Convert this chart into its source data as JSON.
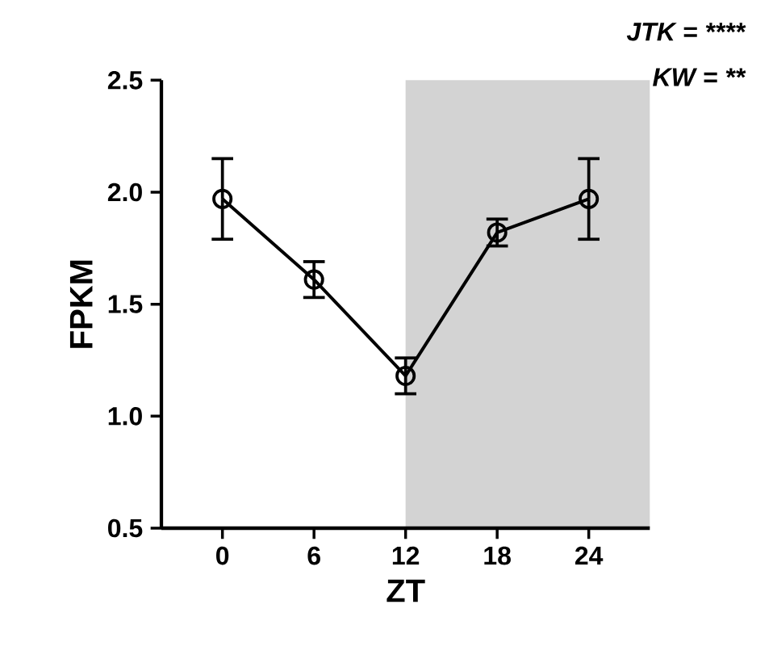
{
  "chart_data": {
    "type": "line",
    "xlabel": "ZT",
    "ylabel": "FPKM",
    "x": [
      0,
      6,
      12,
      18,
      24
    ],
    "series": [
      {
        "color": "#000000",
        "values": [
          1.97,
          1.61,
          1.18,
          1.82,
          1.97
        ],
        "errors": [
          0.18,
          0.08,
          0.08,
          0.06,
          0.18
        ]
      }
    ],
    "marker": "circle",
    "line_style": "solid",
    "xlim": [
      -4,
      28
    ],
    "ylim": [
      0.5,
      2.5
    ],
    "xticks": [
      0,
      6,
      12,
      18,
      24
    ],
    "yticks": [
      {
        "value": 0.5,
        "label": "0.5"
      },
      {
        "value": 1,
        "label": "1.0"
      },
      {
        "value": 1.5,
        "label": "1.5"
      },
      {
        "value": 2,
        "label": "2.0"
      },
      {
        "value": 2.5,
        "label": "2.5"
      }
    ],
    "bands": [
      {
        "axis": "x",
        "from": 12,
        "to": 28,
        "color": "#d3d3d3"
      }
    ],
    "annotations": [
      "JTK = ****",
      "KW = **"
    ],
    "grid": false
  }
}
